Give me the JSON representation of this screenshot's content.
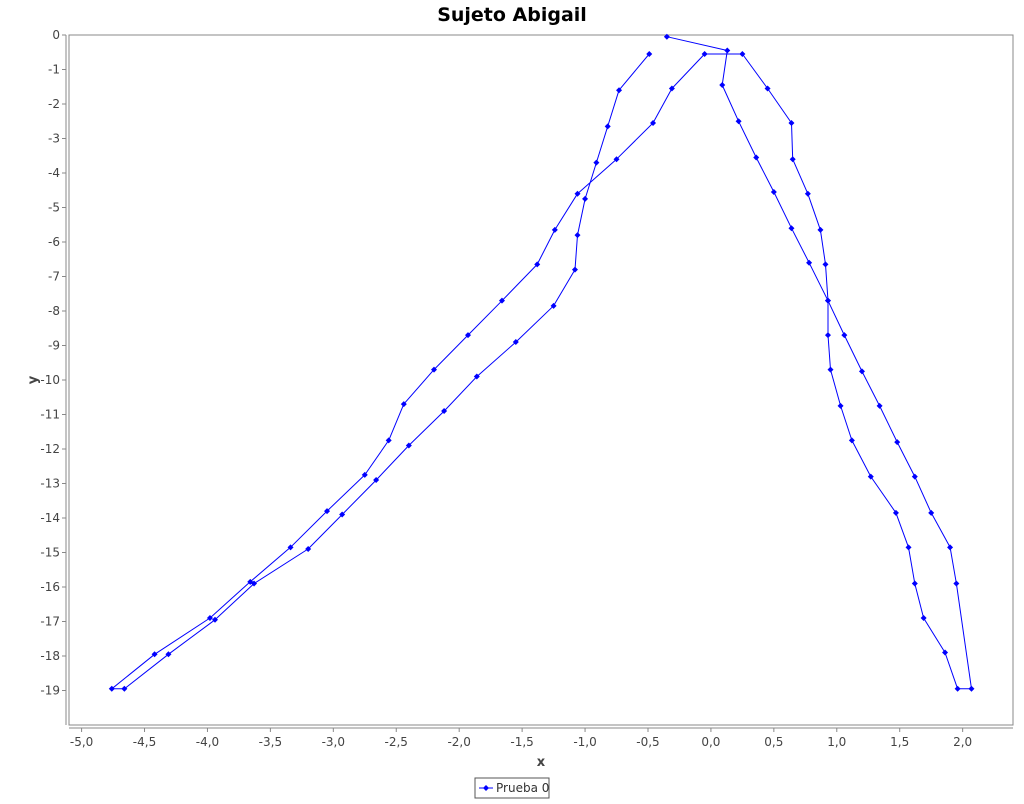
{
  "chart_data": {
    "type": "line",
    "title": "Sujeto Abigail",
    "xlabel": "x",
    "ylabel": "y",
    "xlim": [
      -5.1,
      2.4
    ],
    "ylim": [
      -20.0,
      0.0
    ],
    "x_ticks": [
      -5.0,
      -4.5,
      -4.0,
      -3.5,
      -3.0,
      -2.5,
      -2.0,
      -1.5,
      -1.0,
      -0.5,
      0.0,
      0.5,
      1.0,
      1.5,
      2.0
    ],
    "x_tick_labels": [
      "-5,0",
      "-4,5",
      "-4,0",
      "-3,5",
      "-3,0",
      "-2,5",
      "-2,0",
      "-1,5",
      "-1,0",
      "-0,5",
      "0,0",
      "0,5",
      "1,0",
      "1,5",
      "2,0"
    ],
    "y_ticks": [
      0,
      -1,
      -2,
      -3,
      -4,
      -5,
      -6,
      -7,
      -8,
      -9,
      -10,
      -11,
      -12,
      -13,
      -14,
      -15,
      -16,
      -17,
      -18,
      -19
    ],
    "y_tick_labels": [
      "0",
      "-1",
      "-2",
      "-3",
      "-4",
      "-5",
      "-6",
      "-7",
      "-8",
      "-9",
      "-10",
      "-11",
      "-12",
      "-13",
      "-14",
      "-15",
      "-16",
      "-17",
      "-18",
      "-19"
    ],
    "grid": false,
    "legend_position": "bottom-center",
    "series": [
      {
        "name": "Prueba 0",
        "color": "#0000ff",
        "points": [
          [
            -0.49,
            -0.55
          ],
          [
            -0.73,
            -1.6
          ],
          [
            -0.82,
            -2.65
          ],
          [
            -0.91,
            -3.7
          ],
          [
            -1.0,
            -4.75
          ],
          [
            -1.06,
            -5.8
          ],
          [
            -1.08,
            -6.8
          ],
          [
            -1.25,
            -7.85
          ],
          [
            -1.55,
            -8.9
          ],
          [
            -1.86,
            -9.9
          ],
          [
            -2.12,
            -10.9
          ],
          [
            -2.4,
            -11.9
          ],
          [
            -2.66,
            -12.9
          ],
          [
            -2.93,
            -13.9
          ],
          [
            -3.2,
            -14.9
          ],
          [
            -3.63,
            -15.9
          ],
          [
            -3.94,
            -16.95
          ],
          [
            -4.31,
            -17.95
          ],
          [
            -4.66,
            -18.95
          ],
          [
            -4.76,
            -18.95
          ],
          [
            -4.42,
            -17.95
          ],
          [
            -3.98,
            -16.9
          ],
          [
            -3.66,
            -15.85
          ],
          [
            -3.34,
            -14.85
          ],
          [
            -3.05,
            -13.8
          ],
          [
            -2.75,
            -12.75
          ],
          [
            -2.56,
            -11.75
          ],
          [
            -2.44,
            -10.7
          ],
          [
            -2.2,
            -9.7
          ],
          [
            -1.93,
            -8.7
          ],
          [
            -1.66,
            -7.7
          ],
          [
            -1.38,
            -6.65
          ],
          [
            -1.24,
            -5.65
          ],
          [
            -1.06,
            -4.6
          ],
          [
            -0.75,
            -3.6
          ],
          [
            -0.46,
            -2.55
          ],
          [
            -0.31,
            -1.55
          ],
          [
            -0.05,
            -0.55
          ],
          [
            0.25,
            -0.55
          ],
          [
            0.45,
            -1.55
          ],
          [
            0.64,
            -2.55
          ],
          [
            0.65,
            -3.6
          ],
          [
            0.77,
            -4.6
          ],
          [
            0.87,
            -5.65
          ],
          [
            0.91,
            -6.65
          ],
          [
            0.93,
            -7.7
          ],
          [
            0.93,
            -8.7
          ],
          [
            0.95,
            -9.7
          ],
          [
            1.03,
            -10.75
          ],
          [
            1.12,
            -11.75
          ],
          [
            1.27,
            -12.8
          ],
          [
            1.47,
            -13.85
          ],
          [
            1.57,
            -14.85
          ],
          [
            1.62,
            -15.9
          ],
          [
            1.69,
            -16.9
          ],
          [
            1.86,
            -17.9
          ],
          [
            1.96,
            -18.95
          ],
          [
            2.07,
            -18.95
          ],
          [
            1.95,
            -15.9
          ],
          [
            1.9,
            -14.85
          ],
          [
            1.75,
            -13.85
          ],
          [
            1.62,
            -12.8
          ],
          [
            1.48,
            -11.8
          ],
          [
            1.34,
            -10.75
          ],
          [
            1.2,
            -9.75
          ],
          [
            1.06,
            -8.7
          ],
          [
            0.93,
            -7.7
          ],
          [
            0.78,
            -6.6
          ],
          [
            0.64,
            -5.6
          ],
          [
            0.5,
            -4.55
          ],
          [
            0.36,
            -3.55
          ],
          [
            0.22,
            -2.5
          ],
          [
            0.09,
            -1.45
          ],
          [
            0.13,
            -0.45
          ],
          [
            -0.35,
            -0.05
          ]
        ]
      }
    ]
  }
}
